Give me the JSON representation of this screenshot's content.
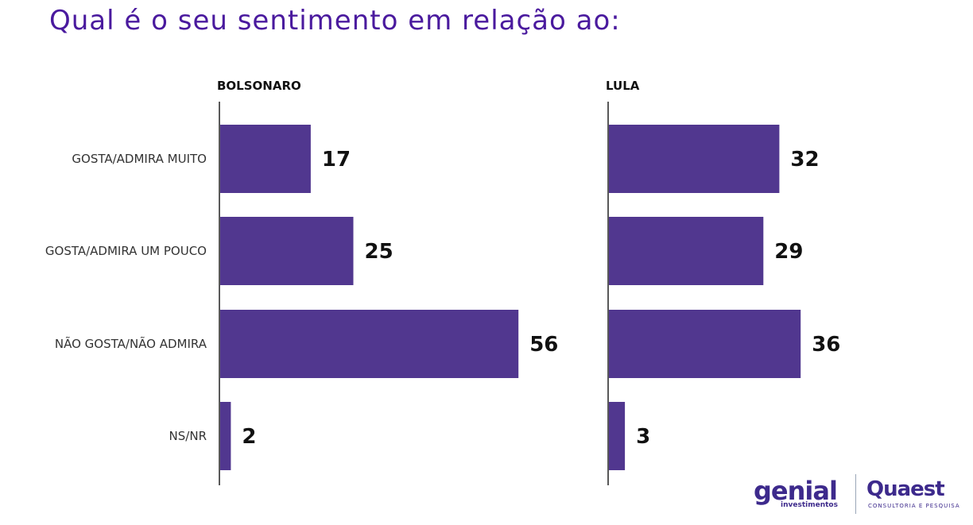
{
  "title": "Qual é o seu sentimento em relação ao:",
  "chart_data": {
    "type": "bar",
    "orientation": "horizontal",
    "categories": [
      "GOSTA/ADMIRA MUITO",
      "GOSTA/ADMIRA UM POUCO",
      "NÃO GOSTA/NÃO ADMIRA",
      "NS/NR"
    ],
    "series": [
      {
        "name": "BOLSONARO",
        "values": [
          17,
          25,
          56,
          2
        ]
      },
      {
        "name": "LULA",
        "values": [
          32,
          29,
          36,
          3
        ]
      }
    ],
    "bar_color": "#51378f",
    "grid": false
  },
  "logos": {
    "genial": "genial",
    "genial_sub": "investimentos",
    "quaest": "Quaest",
    "quaest_sub": "CONSULTORIA E PESQUISA"
  }
}
